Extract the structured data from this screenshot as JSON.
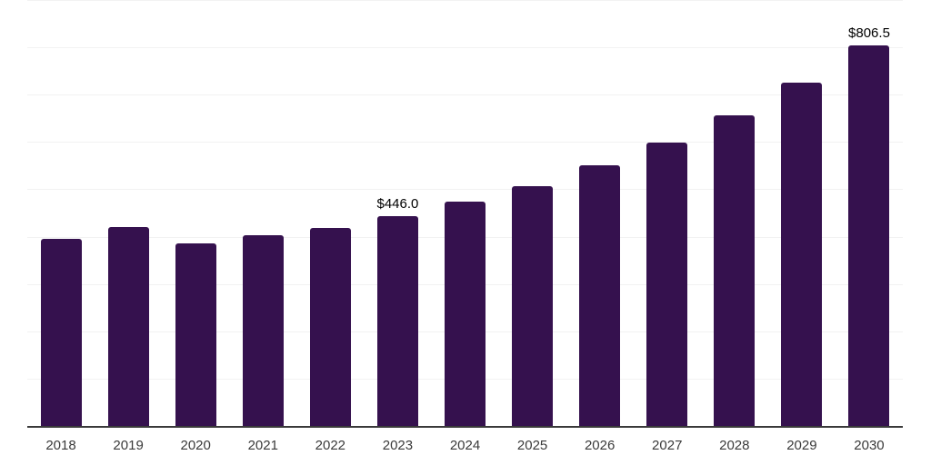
{
  "chart_data": {
    "type": "bar",
    "title": "",
    "xlabel": "",
    "ylabel": "",
    "categories": [
      "2018",
      "2019",
      "2020",
      "2021",
      "2022",
      "2023",
      "2024",
      "2025",
      "2026",
      "2027",
      "2028",
      "2029",
      "2030"
    ],
    "values": [
      398,
      423,
      388,
      404,
      421,
      446.0,
      475,
      509,
      552,
      600,
      659,
      727,
      806.5
    ],
    "data_labels": [
      "",
      "",
      "",
      "",
      "",
      "$446.0",
      "",
      "",
      "",
      "",
      "",
      "",
      "$806.5"
    ],
    "ylim": [
      0,
      900
    ],
    "gridline_step": 100,
    "grid": "horizontal",
    "legend": "none",
    "colors": {
      "bar": "#35114E",
      "gridline": "#F2F2F2",
      "axis_line": "#3A3A3A",
      "tick_label": "#3A3A3A",
      "data_label": "#000000",
      "background": "#FFFFFF"
    }
  }
}
